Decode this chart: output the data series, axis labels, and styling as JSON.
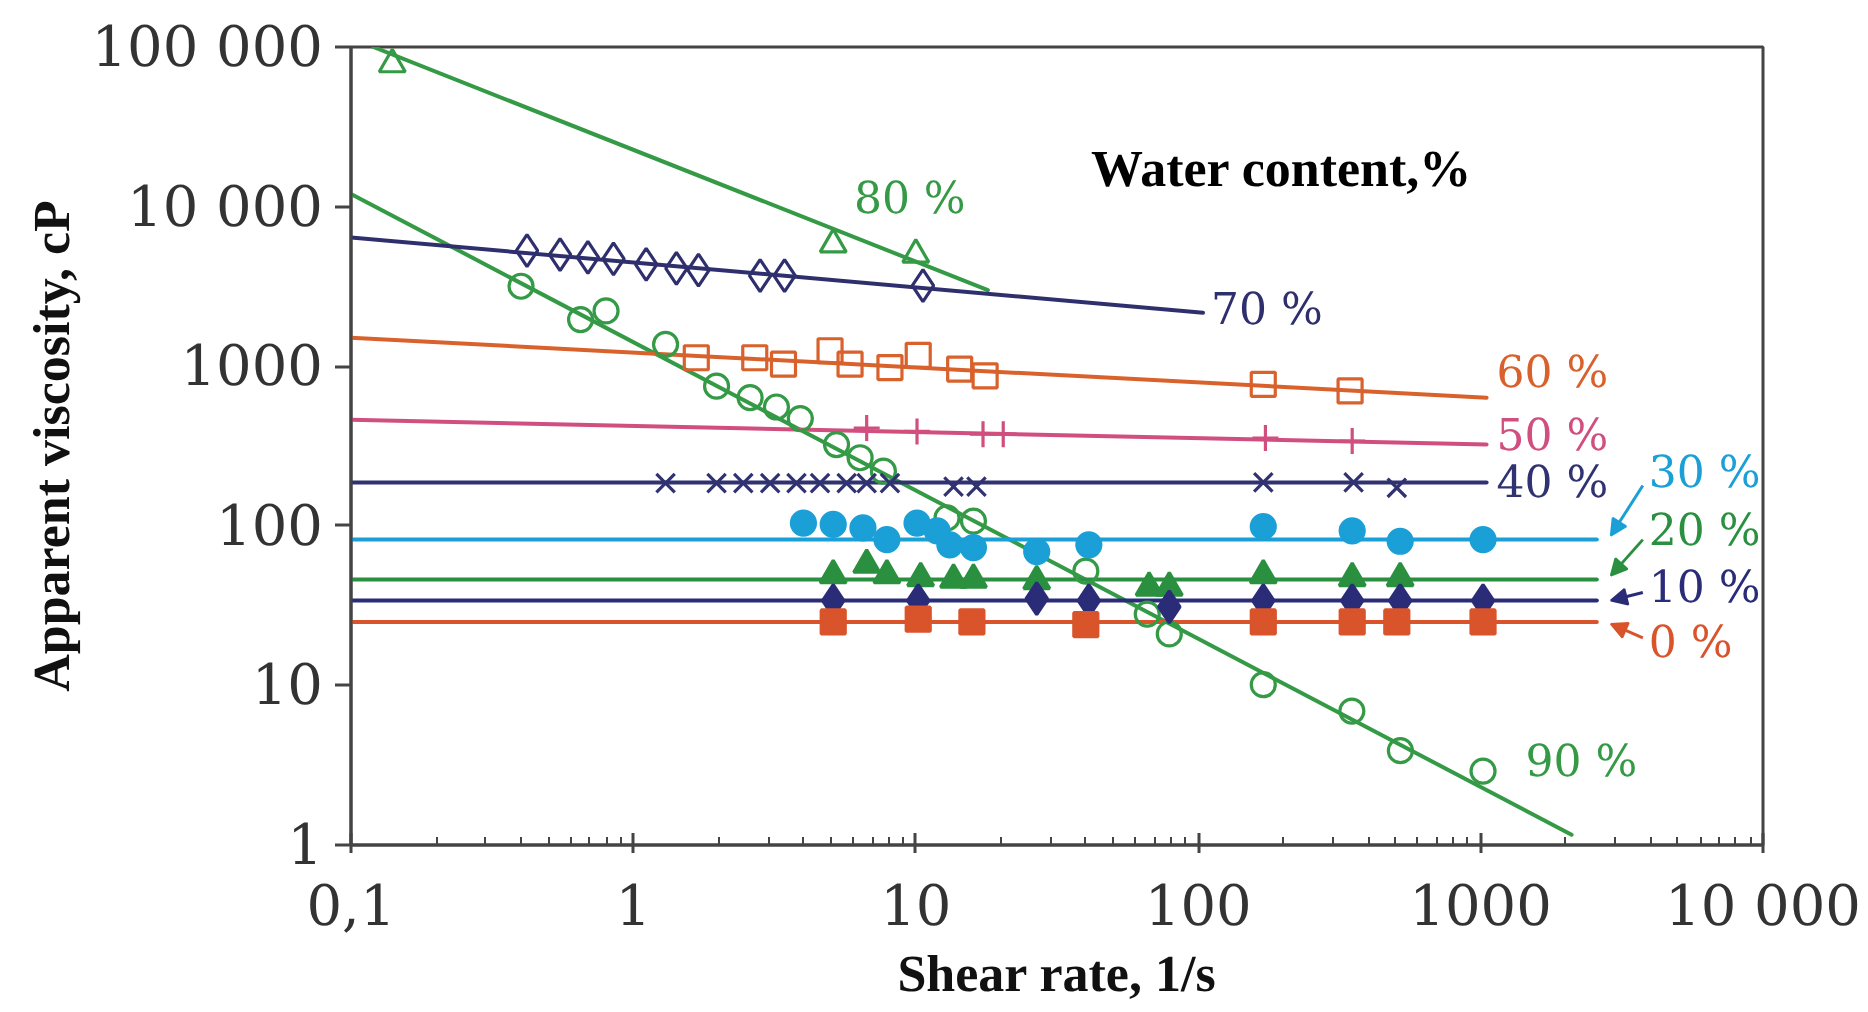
{
  "chart_data": {
    "type": "scatter",
    "xlabel": "Shear rate, 1/s",
    "ylabel": "Apparent viscosity, cP",
    "annotations": [
      "Water content,%"
    ],
    "log": "xy",
    "grid": false,
    "line_style": "solid",
    "legend": "right",
    "xlim": [
      0.1,
      10000
    ],
    "ylim": [
      1,
      100000
    ],
    "xticks": [
      {
        "value": 0.1,
        "label": "0,1"
      },
      1,
      10,
      100,
      1000,
      {
        "value": 10000,
        "label": "10 000"
      }
    ],
    "yticks": [
      1,
      10,
      100,
      1000,
      {
        "value": 10000,
        "label": "10 000"
      },
      {
        "value": 100000,
        "label": "100 000"
      }
    ],
    "series": [
      {
        "marker": "circle-open",
        "color": "#349a45",
        "x": [
          0.4,
          0.65,
          0.8,
          1.3,
          1.97,
          2.59,
          3.21,
          3.9,
          5.24,
          6.35,
          7.68,
          12.9,
          16,
          40,
          66,
          79,
          170,
          350,
          520,
          1020
        ],
        "values": [
          3170,
          1960,
          2220,
          1370,
          750,
          635,
          555,
          470,
          323,
          267,
          220,
          112,
          107,
          52,
          28,
          21,
          10.1,
          6.9,
          3.9,
          2.9
        ]
      },
      {
        "type": "line",
        "name": "90 %",
        "color": "#349a45",
        "x": [
          0.1,
          2100
        ],
        "values": [
          12000,
          1.16
        ]
      },
      {
        "marker": "triangle-open",
        "color": "#349a45",
        "x": [
          0.14,
          5.1,
          10
        ],
        "values": [
          78000,
          5800,
          5000
        ]
      },
      {
        "type": "line",
        "name": "80 %",
        "color": "#349a45",
        "x": [
          0.12,
          18
        ],
        "values": [
          100000,
          3000
        ]
      },
      {
        "marker": "diamond-open",
        "color": "#2f2f6e",
        "x": [
          0.42,
          0.55,
          0.69,
          0.85,
          1.11,
          1.42,
          1.7,
          2.81,
          3.43,
          10.6
        ],
        "values": [
          5300,
          5000,
          4800,
          4700,
          4350,
          4100,
          4000,
          3700,
          3700,
          3200
        ]
      },
      {
        "type": "line",
        "name": "70 %",
        "color": "#2f2f6e",
        "x": [
          0.1,
          104
        ],
        "values": [
          6400,
          2160
        ]
      },
      {
        "marker": "square-open",
        "color": "#d8612c",
        "x": [
          1.67,
          2.69,
          3.4,
          4.97,
          5.85,
          8.1,
          10.2,
          14.3,
          17.6,
          170,
          345
        ],
        "values": [
          1130,
          1130,
          1030,
          1250,
          1030,
          980,
          1170,
          960,
          870,
          770,
          700
        ]
      },
      {
        "type": "line",
        "name": "60 %",
        "color": "#d8612c",
        "x": [
          0.1,
          1050
        ],
        "values": [
          1510,
          635
        ]
      },
      {
        "marker": "cross",
        "color": "#d14f7f",
        "x": [
          6.7,
          10.1,
          17.3,
          20.4,
          173,
          351
        ],
        "values": [
          410,
          390,
          375,
          375,
          355,
          340
        ]
      },
      {
        "type": "line",
        "name": "50 %",
        "color": "#d14f7f",
        "x": [
          0.1,
          1050
        ],
        "values": [
          462,
          323
        ]
      },
      {
        "marker": "x",
        "color": "#303272",
        "x": [
          1.3,
          1.97,
          2.45,
          3.05,
          3.78,
          4.58,
          5.69,
          6.7,
          8.1,
          13.6,
          16.4,
          170,
          355,
          505
        ],
        "values": [
          185,
          185,
          185,
          185,
          185,
          185,
          185,
          185,
          185,
          176,
          176,
          187,
          187,
          173
        ]
      },
      {
        "type": "line",
        "name": "40 %",
        "color": "#303272",
        "x": [
          0.1,
          1050
        ],
        "values": [
          187,
          187
        ]
      },
      {
        "marker": "circle",
        "color": "#1a9fd6",
        "x": [
          4.0,
          5.1,
          6.5,
          7.9,
          10.1,
          11.9,
          13.2,
          16,
          26.8,
          41,
          170,
          351,
          519,
          1020
        ],
        "values": [
          104,
          102,
          97,
          82,
          104,
          93,
          76,
          73,
          69,
          76,
          99,
          93,
          80,
          82
        ]
      },
      {
        "type": "line",
        "name": "30 %",
        "color": "#1a9fd6",
        "x": [
          0.1,
          2580
        ],
        "values": [
          82,
          82
        ]
      },
      {
        "marker": "triangle",
        "color": "#2a9040",
        "x": [
          5.1,
          6.7,
          7.9,
          10.4,
          13.6,
          16,
          26.8,
          67,
          79,
          170,
          351,
          519
        ],
        "values": [
          49,
          57,
          49,
          47,
          46,
          46,
          45,
          41,
          41,
          49,
          47,
          47
        ]
      },
      {
        "type": "line",
        "name": "20 %",
        "color": "#2a9040",
        "x": [
          0.1,
          2580
        ],
        "values": [
          46,
          46
        ]
      },
      {
        "marker": "diamond",
        "color": "#2b2c78",
        "x": [
          5.1,
          10.2,
          26.8,
          41,
          79,
          170,
          351,
          519,
          1020
        ],
        "values": [
          34,
          34,
          35,
          34,
          31,
          34,
          34,
          34,
          34
        ]
      },
      {
        "type": "line",
        "name": "10 %",
        "color": "#2b2c78",
        "x": [
          0.1,
          2580
        ],
        "values": [
          34,
          34
        ]
      },
      {
        "marker": "square",
        "color": "#d9532b",
        "x": [
          5.1,
          10.2,
          15.8,
          40,
          170,
          351,
          505,
          1020
        ],
        "values": [
          25,
          26,
          25,
          24,
          25,
          25,
          25,
          25
        ]
      },
      {
        "type": "line",
        "name": "0 %",
        "color": "#d9532b",
        "x": [
          0.1,
          2580
        ],
        "values": [
          25,
          25
        ]
      }
    ]
  }
}
